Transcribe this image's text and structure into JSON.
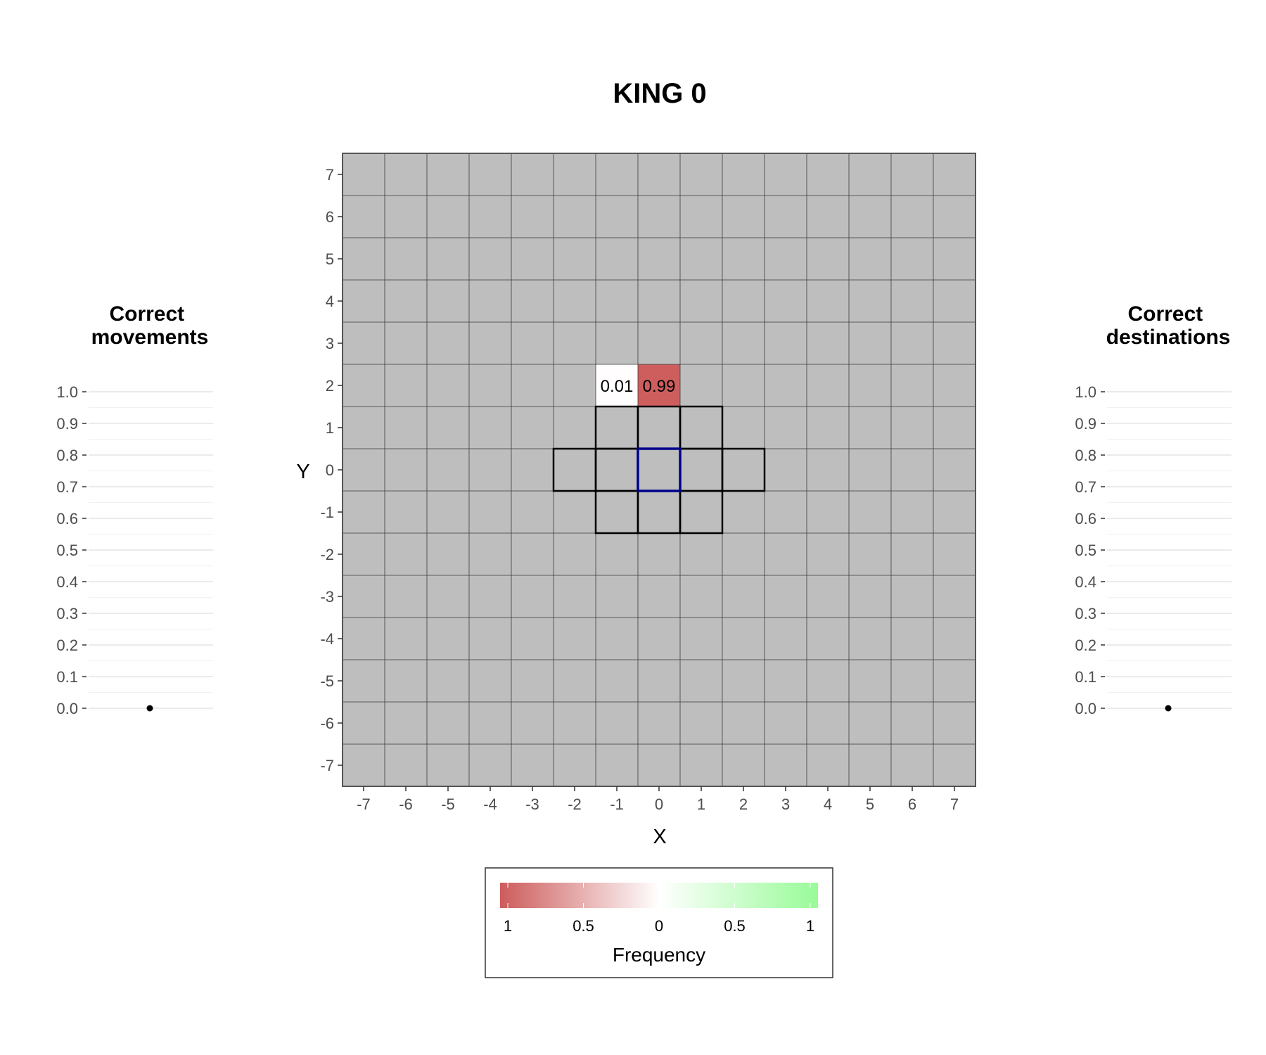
{
  "chart_data": [
    {
      "type": "heatmap",
      "title": "KING 0",
      "xlabel": "X",
      "ylabel": "Y",
      "x_ticks": [
        "-7",
        "-6",
        "-5",
        "-4",
        "-3",
        "-2",
        "-1",
        "0",
        "1",
        "2",
        "3",
        "4",
        "5",
        "6",
        "7"
      ],
      "y_ticks": [
        "7",
        "6",
        "5",
        "4",
        "3",
        "2",
        "1",
        "0",
        "-1",
        "-2",
        "-3",
        "-4",
        "-5",
        "-6",
        "-7"
      ],
      "xlim": [
        -7,
        7
      ],
      "ylim": [
        -7,
        7
      ],
      "background_color": "#bebebe",
      "cells": [
        {
          "x": -1,
          "y": 2,
          "value": 0.01,
          "label": "0.01",
          "sign": "negative"
        },
        {
          "x": 0,
          "y": 2,
          "value": 0.99,
          "label": "0.99",
          "sign": "negative"
        }
      ],
      "legal_moves_outlined": [
        {
          "x": -1,
          "y": 1
        },
        {
          "x": 0,
          "y": 1
        },
        {
          "x": 1,
          "y": 1
        },
        {
          "x": -2,
          "y": 0
        },
        {
          "x": -1,
          "y": 0
        },
        {
          "x": 1,
          "y": 0
        },
        {
          "x": 2,
          "y": 0
        },
        {
          "x": -1,
          "y": -1
        },
        {
          "x": 0,
          "y": -1
        },
        {
          "x": 1,
          "y": -1
        }
      ],
      "origin_cell": {
        "x": 0,
        "y": 0,
        "color": "#00008b"
      },
      "legend": {
        "title": "Frequency",
        "ticks": [
          "1",
          "0.5",
          "0",
          "0.5",
          "1"
        ],
        "color_low": "#cd5c5c",
        "color_mid": "#ffffff",
        "color_high": "#98fb98",
        "placement": "bottom"
      }
    },
    {
      "type": "scatter",
      "title": "Correct movements",
      "y_ticks": [
        "1.0",
        "0.9",
        "0.8",
        "0.7",
        "0.6",
        "0.5",
        "0.4",
        "0.3",
        "0.2",
        "0.1",
        "0.0"
      ],
      "ylim": [
        0,
        1
      ],
      "values": [
        0.0
      ]
    },
    {
      "type": "scatter",
      "title": "Correct destinations",
      "y_ticks": [
        "1.0",
        "0.9",
        "0.8",
        "0.7",
        "0.6",
        "0.5",
        "0.4",
        "0.3",
        "0.2",
        "0.1",
        "0.0"
      ],
      "ylim": [
        0,
        1
      ],
      "values": [
        0.0
      ]
    }
  ]
}
